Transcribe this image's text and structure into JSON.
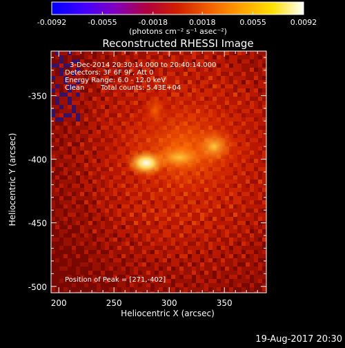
{
  "colorbar": {
    "tick_labels": [
      "-0.0092",
      "-0.0055",
      "-0.0018",
      "0.0018",
      "0.0055",
      "0.0092"
    ],
    "tick_values": [
      -0.0092,
      -0.0055,
      -0.0018,
      0.0018,
      0.0055,
      0.0092
    ],
    "range": [
      -0.0092,
      0.0092
    ],
    "units_label": "(photons cm⁻² s⁻¹ asec⁻²)",
    "colormap": [
      "#0000ff",
      "#4000ff",
      "#8000c0",
      "#b00040",
      "#d02000",
      "#f06000",
      "#ffa000",
      "#ffe000",
      "#ffffff"
    ]
  },
  "title": "Reconstructed RHESSI Image",
  "annotations": {
    "line1": "3-Dec-2014 20:30:14.000 to 20:40:14.000",
    "line2": "Detectors: 3F 6F 9F, Att 0",
    "line3": "Energy Range: 6.0 - 12.0 keV",
    "line4_left": "Clean",
    "line4_right": "Total counts: 5.43E+04",
    "peak": "Position of Peak = [271,-402]"
  },
  "axes": {
    "xlabel": "Heliocentric X (arcsec)",
    "ylabel": "Heliocentric Y (arcsec)",
    "x_ticks": [
      200,
      250,
      300,
      350
    ],
    "x_tick_labels": [
      "200",
      "250",
      "300",
      "350"
    ],
    "y_ticks": [
      -350,
      -400,
      -450,
      -500
    ],
    "y_tick_labels": [
      "-350",
      "-400",
      "-450",
      "-500"
    ],
    "xlim": [
      193,
      388
    ],
    "ylim": [
      -505,
      -315
    ]
  },
  "image": {
    "peak_position": [
      271,
      -402
    ],
    "description_free": true
  },
  "footer": {
    "timestamp": "19-Aug-2017 20:30"
  }
}
